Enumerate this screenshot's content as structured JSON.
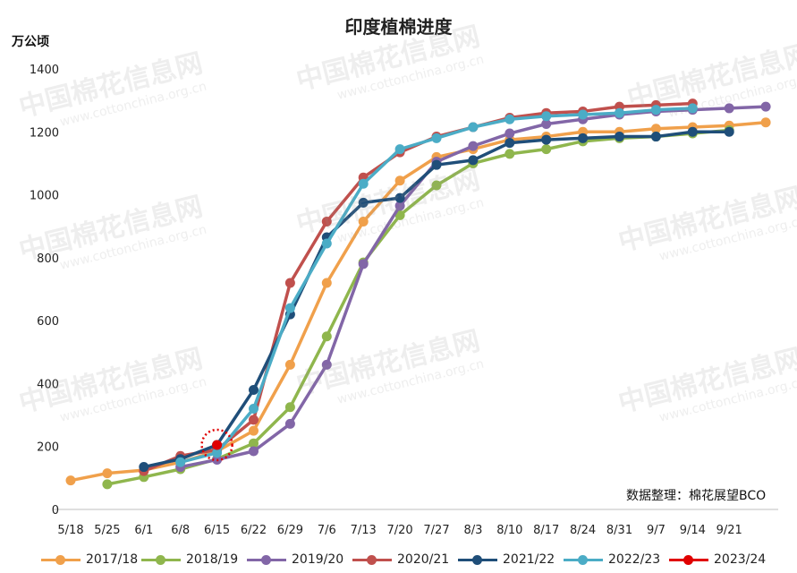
{
  "chart_data": {
    "type": "line",
    "title": "印度植棉进度",
    "ylabel": "万公顷",
    "source_note": "数据整理：棉花展望BCO",
    "watermark_text": "中国棉花信息网",
    "watermark_url": "www.cottonchina.org.cn",
    "ylim": [
      0,
      1400
    ],
    "yticks": [
      0,
      200,
      400,
      600,
      800,
      1000,
      1200,
      1400
    ],
    "grid": false,
    "legend_position": "bottom",
    "categories": [
      "5/18",
      "5/25",
      "6/1",
      "6/8",
      "6/15",
      "6/22",
      "6/29",
      "7/6",
      "7/13",
      "7/20",
      "7/27",
      "8/3",
      "8/10",
      "8/17",
      "8/24",
      "8/31",
      "9/7",
      "9/14",
      "9/21",
      ""
    ],
    "highlight": {
      "series": "2023/24",
      "index": 4
    },
    "series": [
      {
        "name": "2017/18",
        "color": "#f0a04b",
        "values": [
          92,
          115,
          125,
          150,
          185,
          250,
          460,
          720,
          915,
          1045,
          1120,
          1145,
          1175,
          1185,
          1200,
          1200,
          1210,
          1215,
          1220,
          1230
        ]
      },
      {
        "name": "2018/19",
        "color": "#8fb64d",
        "values": [
          null,
          80,
          103,
          128,
          160,
          210,
          325,
          550,
          785,
          935,
          1030,
          1100,
          1130,
          1145,
          1170,
          1180,
          1185,
          1195,
          1205,
          null
        ]
      },
      {
        "name": "2019/20",
        "color": "#8266a7",
        "values": [
          null,
          null,
          null,
          135,
          158,
          185,
          272,
          460,
          780,
          965,
          1105,
          1155,
          1195,
          1225,
          1240,
          1255,
          1265,
          1270,
          1275,
          1280
        ]
      },
      {
        "name": "2020/21",
        "color": "#c0504d",
        "values": [
          null,
          null,
          122,
          170,
          190,
          285,
          720,
          915,
          1055,
          1135,
          1185,
          1215,
          1245,
          1260,
          1265,
          1280,
          1285,
          1290,
          null,
          null
        ]
      },
      {
        "name": "2021/22",
        "color": "#1f4e79",
        "values": [
          null,
          null,
          135,
          160,
          205,
          380,
          620,
          865,
          975,
          990,
          1095,
          1110,
          1165,
          1175,
          1180,
          1185,
          1185,
          1200,
          1200,
          null
        ]
      },
      {
        "name": "2022/23",
        "color": "#4bacc6",
        "values": [
          null,
          null,
          null,
          150,
          180,
          320,
          640,
          845,
          1035,
          1145,
          1180,
          1215,
          1240,
          1250,
          1255,
          1260,
          1270,
          1275,
          null,
          null
        ]
      },
      {
        "name": "2023/24",
        "color": "#e00000",
        "values": [
          null,
          null,
          null,
          null,
          205,
          null,
          null,
          null,
          null,
          null,
          null,
          null,
          null,
          null,
          null,
          null,
          null,
          null,
          null,
          null
        ]
      }
    ]
  }
}
